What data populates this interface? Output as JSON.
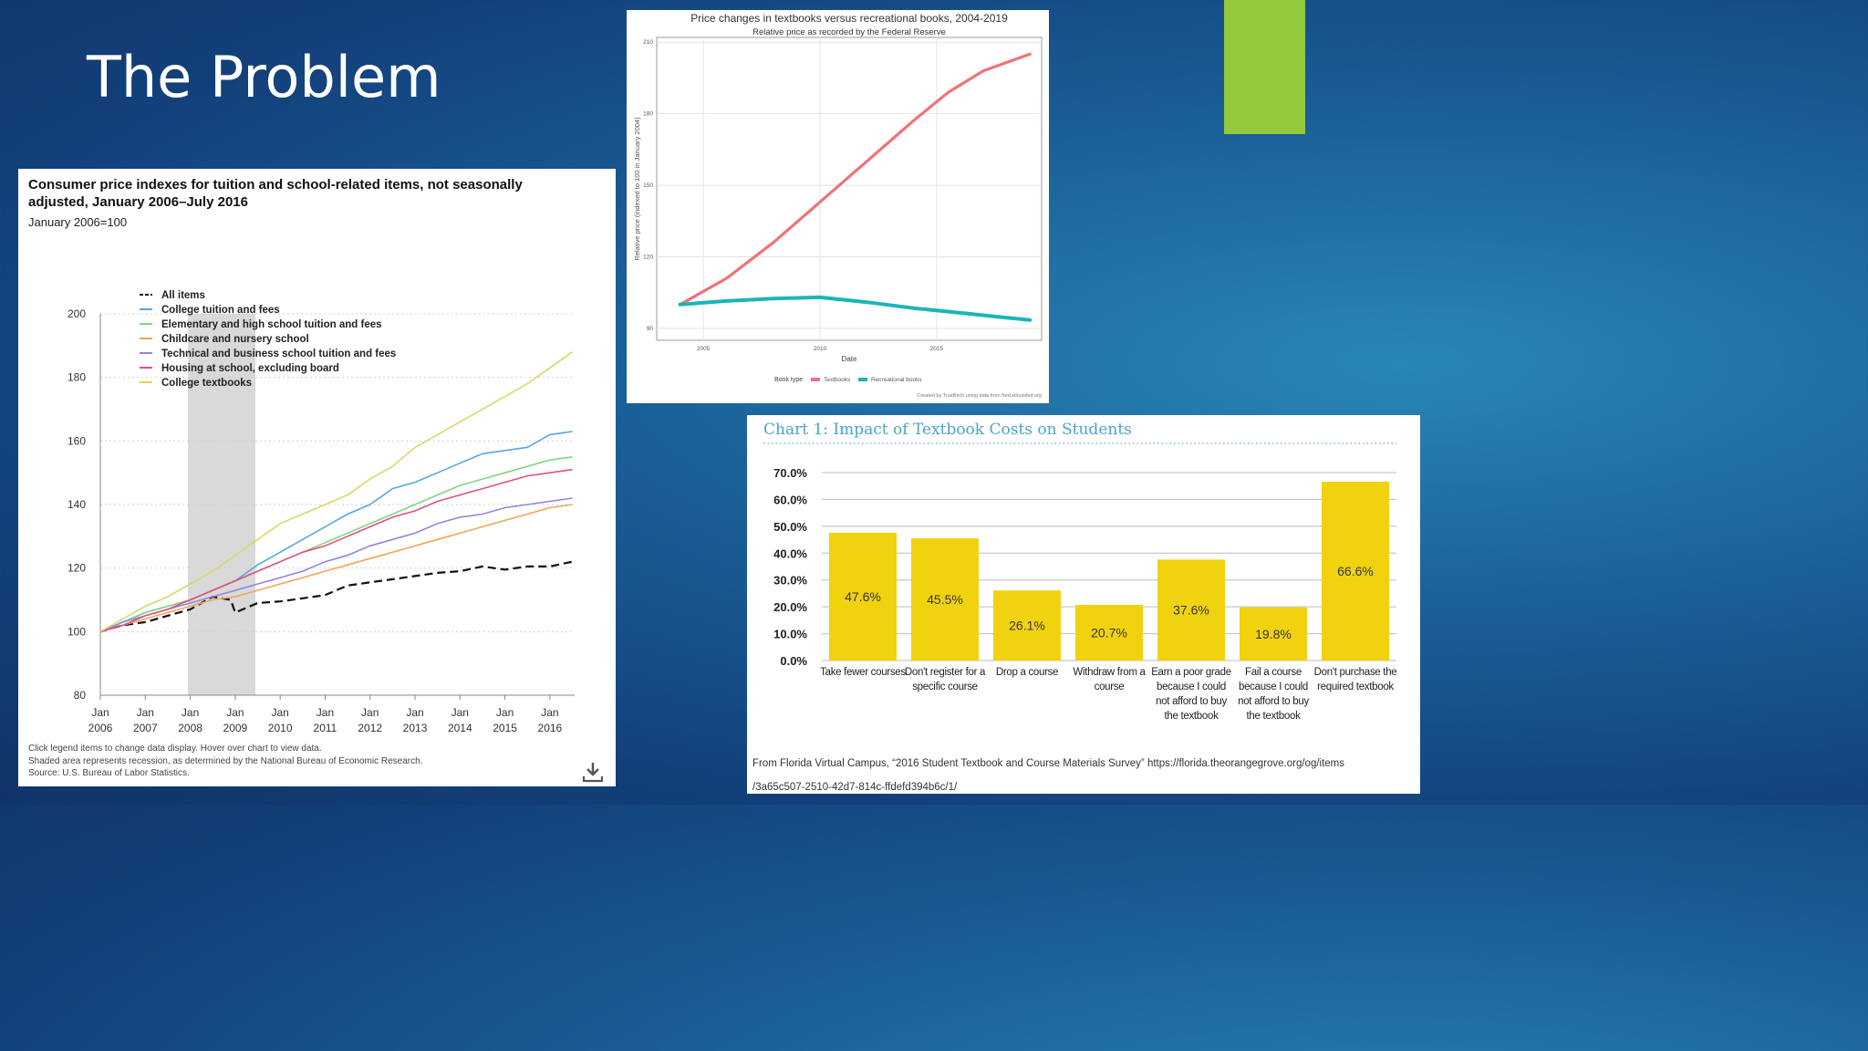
{
  "slide": {
    "title": "The Problem",
    "accent_color": "#94c83d"
  },
  "chart_data": [
    {
      "type": "line",
      "title": "Consumer price indexes for tuition and school-related items, not seasonally adjusted, January 2006–July 2016",
      "subtitle": "January 2006=100",
      "ylim": [
        80,
        200
      ],
      "yticks": [
        80,
        100,
        120,
        140,
        160,
        180,
        200
      ],
      "xlim": [
        2006.0,
        2016.55
      ],
      "xticks": [
        {
          "top": "Jan",
          "bottom": "2006",
          "x": 2006
        },
        {
          "top": "Jan",
          "bottom": "2007",
          "x": 2007
        },
        {
          "top": "Jan",
          "bottom": "2008",
          "x": 2008
        },
        {
          "top": "Jan",
          "bottom": "2009",
          "x": 2009
        },
        {
          "top": "Jan",
          "bottom": "2010",
          "x": 2010
        },
        {
          "top": "Jan",
          "bottom": "2011",
          "x": 2011
        },
        {
          "top": "Jan",
          "bottom": "2012",
          "x": 2012
        },
        {
          "top": "Jan",
          "bottom": "2013",
          "x": 2013
        },
        {
          "top": "Jan",
          "bottom": "2014",
          "x": 2014
        },
        {
          "top": "Jan",
          "bottom": "2015",
          "x": 2015
        },
        {
          "top": "Jan",
          "bottom": "2016",
          "x": 2016
        }
      ],
      "recession": [
        2007.95,
        2009.45
      ],
      "legend_position": "top-left",
      "series": [
        {
          "name": "All items",
          "color": "#111111",
          "dashed": true,
          "x": [
            2006,
            2006.5,
            2007,
            2007.5,
            2008,
            2008.5,
            2008.9,
            2009,
            2009.5,
            2010,
            2010.5,
            2011,
            2011.5,
            2012,
            2012.5,
            2013,
            2013.5,
            2014,
            2014.5,
            2015,
            2015.5,
            2016,
            2016.5
          ],
          "y": [
            100,
            102,
            103,
            105,
            107,
            111,
            110,
            106,
            109,
            109.5,
            110.5,
            111.5,
            114.5,
            115.5,
            116.5,
            117.5,
            118.5,
            119,
            120.5,
            119.5,
            120.5,
            120.5,
            122
          ]
        },
        {
          "name": "College tuition and fees",
          "color": "#5aa6dc",
          "x": [
            2006,
            2006.5,
            2007,
            2007.5,
            2008,
            2008.5,
            2009,
            2009.5,
            2010,
            2010.5,
            2011,
            2011.5,
            2012,
            2012.5,
            2013,
            2013.5,
            2014,
            2014.5,
            2015,
            2015.5,
            2016,
            2016.5
          ],
          "y": [
            100,
            103,
            106,
            108,
            110,
            113,
            116,
            121,
            125,
            129,
            133,
            137,
            140,
            145,
            147,
            150,
            153,
            156,
            157,
            158,
            162,
            163
          ]
        },
        {
          "name": "Elementary and high school tuition and fees",
          "color": "#7fd67f",
          "x": [
            2006,
            2006.5,
            2007,
            2007.5,
            2008,
            2008.5,
            2009,
            2009.5,
            2010,
            2010.5,
            2011,
            2011.5,
            2012,
            2012.5,
            2013,
            2013.5,
            2014,
            2014.5,
            2015,
            2015.5,
            2016,
            2016.5
          ],
          "y": [
            100,
            103,
            106,
            108,
            110,
            113,
            116,
            119,
            122,
            125,
            128,
            131,
            134,
            137,
            140,
            143,
            146,
            148,
            150,
            152,
            154,
            155
          ]
        },
        {
          "name": "Childcare and nursery school",
          "color": "#f0a65a",
          "x": [
            2006,
            2006.5,
            2007,
            2007.5,
            2008,
            2008.5,
            2009,
            2009.5,
            2010,
            2010.5,
            2011,
            2011.5,
            2012,
            2012.5,
            2013,
            2013.5,
            2014,
            2014.5,
            2015,
            2015.5,
            2016,
            2016.5
          ],
          "y": [
            100,
            102,
            104,
            106,
            108,
            110,
            111,
            113,
            115,
            117,
            119,
            121,
            123,
            125,
            127,
            129,
            131,
            133,
            135,
            137,
            139,
            140
          ]
        },
        {
          "name": "Technical and business school tuition and fees",
          "color": "#8f86e0",
          "x": [
            2006,
            2006.5,
            2007,
            2007.5,
            2008,
            2008.5,
            2009,
            2009.5,
            2010,
            2010.5,
            2011,
            2011.5,
            2012,
            2012.5,
            2013,
            2013.5,
            2014,
            2014.5,
            2015,
            2015.5,
            2016,
            2016.5
          ],
          "y": [
            100,
            103,
            105,
            107,
            109,
            111,
            113,
            115,
            117,
            119,
            122,
            124,
            127,
            129,
            131,
            134,
            136,
            137,
            139,
            140,
            141,
            142
          ]
        },
        {
          "name": "Housing at school, excluding board",
          "color": "#e0507f",
          "x": [
            2006,
            2006.5,
            2007,
            2007.5,
            2008,
            2008.5,
            2009,
            2009.5,
            2010,
            2010.5,
            2011,
            2011.5,
            2012,
            2012.5,
            2013,
            2013.5,
            2014,
            2014.5,
            2015,
            2015.5,
            2016,
            2016.5
          ],
          "y": [
            100,
            102,
            105,
            107,
            110,
            113,
            116,
            119,
            122,
            125,
            127,
            130,
            133,
            136,
            138,
            141,
            143,
            145,
            147,
            149,
            150,
            151
          ]
        },
        {
          "name": "College textbooks",
          "color": "#d7d968",
          "x": [
            2006,
            2006.5,
            2007,
            2007.5,
            2008,
            2008.5,
            2009,
            2009.5,
            2010,
            2010.5,
            2011,
            2011.5,
            2012,
            2012.5,
            2013,
            2013.5,
            2014,
            2014.5,
            2015,
            2015.5,
            2016,
            2016.5
          ],
          "y": [
            100,
            104,
            108,
            111,
            115,
            119,
            124,
            129,
            134,
            137,
            140,
            143,
            148,
            152,
            158,
            162,
            166,
            170,
            174,
            178,
            183,
            188
          ]
        }
      ],
      "notes": [
        "Click legend items to change data display. Hover over chart to view data.",
        "Shaded area represents recession, as determined by the National Bureau of Economic Research.",
        "Source: U.S. Bureau of Labor Statistics."
      ]
    },
    {
      "type": "line",
      "title": "Price changes in textbooks versus recreational books, 2004-2019",
      "subtitle": "Relative price as recorded by the Federal Reserve",
      "xlabel": "Date",
      "ylabel": "Relative price (indexed to 100 in January 2004)",
      "xlim": [
        2003,
        2019.5
      ],
      "ylim": [
        85,
        212
      ],
      "yticks": [
        90,
        120,
        150,
        180,
        210
      ],
      "xticks": [
        2005,
        2010,
        2015
      ],
      "legend_title": "Book type",
      "series": [
        {
          "name": "Textbooks",
          "color": "#f0727a",
          "x": [
            2004,
            2006,
            2008,
            2010,
            2012,
            2014,
            2015.5,
            2017,
            2019
          ],
          "y": [
            100,
            111,
            126,
            143,
            160,
            177,
            189,
            198,
            205
          ]
        },
        {
          "name": "Recreational books",
          "color": "#1cb5b8",
          "x": [
            2004,
            2006,
            2008,
            2010,
            2012,
            2014,
            2016,
            2018,
            2019
          ],
          "y": [
            100,
            101.5,
            102.5,
            103,
            101,
            98.5,
            96.5,
            94.5,
            93.5
          ]
        }
      ],
      "credit": "Created by TrueBirch using data from fred.stlouisfed.org"
    },
    {
      "type": "bar",
      "title": "Chart 1: Impact of Textbook Costs on Students",
      "ylim": [
        0,
        70
      ],
      "yticks": [
        "0.0%",
        "10.0%",
        "20.0%",
        "30.0%",
        "40.0%",
        "50.0%",
        "60.0%",
        "70.0%"
      ],
      "bar_color": "#f1d20f",
      "categories": [
        [
          "Take fewer courses"
        ],
        [
          "Don't register for a",
          "specific course"
        ],
        [
          "Drop a course"
        ],
        [
          "Withdraw from a",
          "course"
        ],
        [
          "Earn a poor grade",
          "because I could",
          "not afford to buy",
          "the textbook"
        ],
        [
          "Fail a course",
          "because I could",
          "not afford to buy",
          "the textbook"
        ],
        [
          "Don't purchase the",
          "required textbook"
        ]
      ],
      "values": [
        47.6,
        45.5,
        26.1,
        20.7,
        37.6,
        19.8,
        66.6
      ],
      "labels": [
        "47.6%",
        "45.5%",
        "26.1%",
        "20.7%",
        "37.6%",
        "19.8%",
        "66.6%"
      ],
      "source_lines": [
        "From Florida Virtual Campus, “2016 Student Textbook and Course Materials Survey” https://florida.theorangegrove.org/og/items",
        "/3a65c507-2510-42d7-814c-ffdefd394b6c/1/"
      ]
    }
  ]
}
